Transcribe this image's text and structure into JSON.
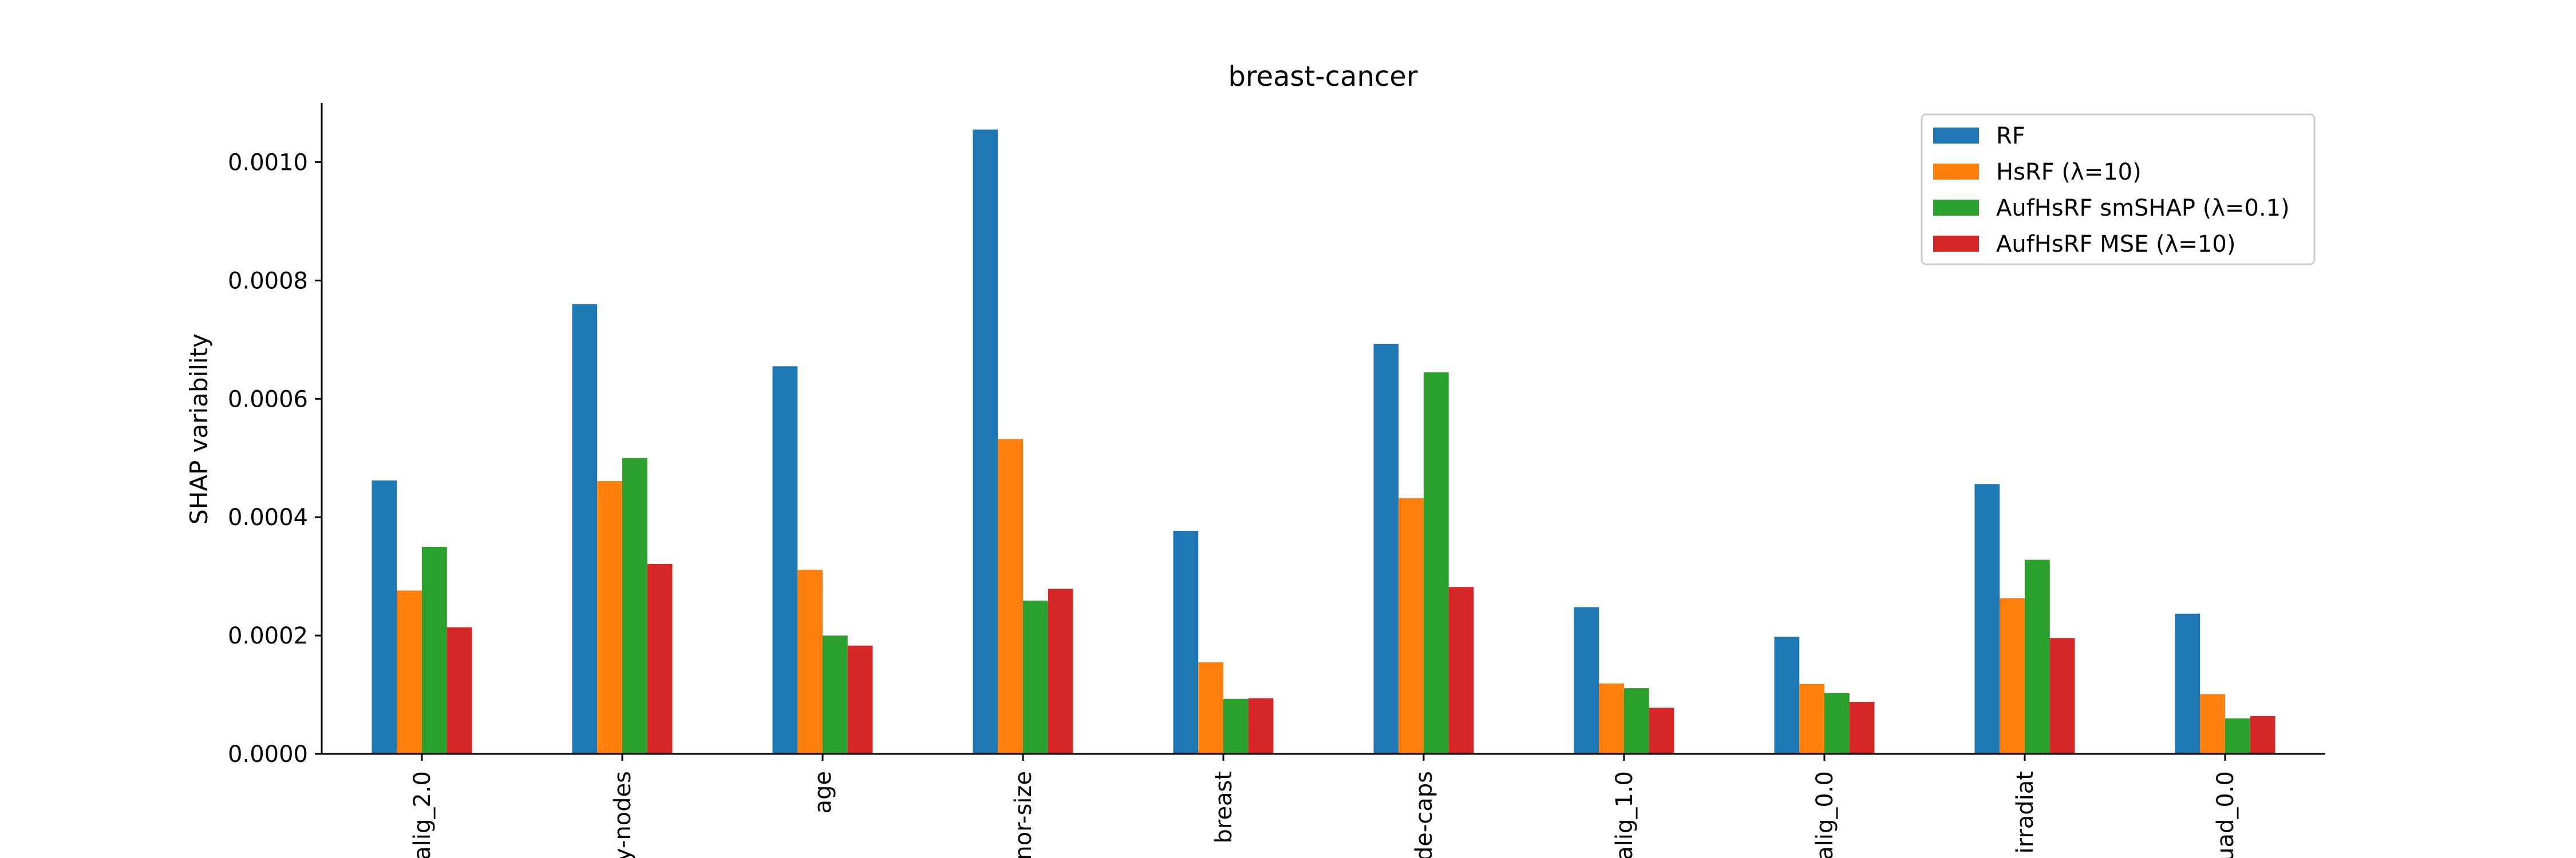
{
  "colors": {
    "background": "#ffffff",
    "axis": "#000000",
    "legend_border": "#cccccc"
  },
  "chart_data": {
    "type": "bar",
    "title": "breast-cancer",
    "xlabel": "",
    "ylabel": "SHAP variability",
    "ylim": [
      0,
      0.0011
    ],
    "yticks": [
      "0.0000",
      "0.0002",
      "0.0004",
      "0.0006",
      "0.0008",
      "0.0010"
    ],
    "grid": false,
    "legend_position": "top-right",
    "categories": [
      "alig_2.0",
      "y-nodes",
      "age",
      "nor-size",
      "breast",
      "de-caps",
      "alig_1.0",
      "alig_0.0",
      "irradiat",
      "uad_0.0"
    ],
    "series": [
      {
        "name": "RF",
        "color": "#1f77b4",
        "values": [
          0.000462,
          0.00076,
          0.000655,
          0.001055,
          0.000377,
          0.000693,
          0.000248,
          0.000198,
          0.000456,
          0.000237
        ]
      },
      {
        "name": "HsRF (λ=10)",
        "color": "#ff7f0e",
        "values": [
          0.000276,
          0.000461,
          0.000311,
          0.000532,
          0.000155,
          0.000432,
          0.000119,
          0.000118,
          0.000263,
          0.000101
        ]
      },
      {
        "name": "AufHsRF smSHAP (λ=0.1)",
        "color": "#2ca02c",
        "values": [
          0.00035,
          0.0005,
          0.0002,
          0.000259,
          9.3e-05,
          0.000645,
          0.000111,
          0.000103,
          0.000328,
          6e-05
        ]
      },
      {
        "name": "AufHsRF MSE (λ=10)",
        "color": "#d62728",
        "values": [
          0.000214,
          0.000321,
          0.000183,
          0.000279,
          9.4e-05,
          0.000282,
          7.8e-05,
          8.8e-05,
          0.000196,
          6.4e-05
        ]
      }
    ]
  }
}
